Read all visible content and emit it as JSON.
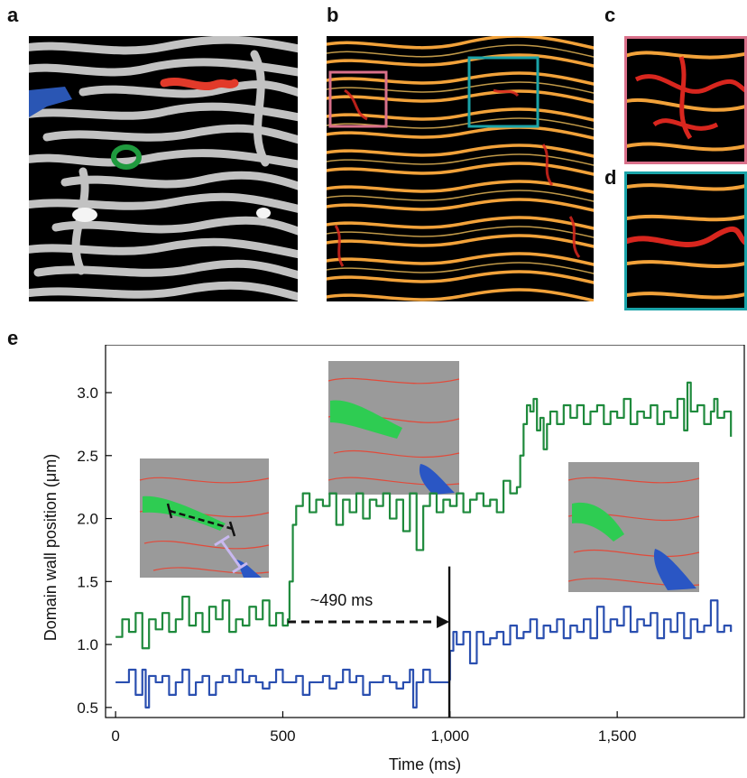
{
  "figure": {
    "panel_labels": {
      "a": "a",
      "b": "b",
      "c": "c",
      "d": "d",
      "e": "e"
    },
    "colors": {
      "green": "#1e8a3c",
      "blue": "#2a4fb0",
      "red": "#e83a2e",
      "pink_box": "#d9708a",
      "teal_box": "#1aa3a8",
      "stripe_gray": "#d8d8d8",
      "stripe_orange": "#f2a23a"
    }
  },
  "chart_data": {
    "type": "line",
    "xlabel": "Time (ms)",
    "ylabel": "Domain wall position (μm)",
    "xlim": [
      -30,
      1880
    ],
    "ylim": [
      0.42,
      3.38
    ],
    "xticks": [
      0,
      500,
      1000,
      1500
    ],
    "xtick_labels": [
      "0",
      "500",
      "1,000",
      "1,500"
    ],
    "yticks": [
      0.5,
      1.0,
      1.5,
      2.0,
      2.5,
      3.0
    ],
    "ytick_labels": [
      "0.5",
      "1.0",
      "1.5",
      "2.0",
      "2.5",
      "3.0"
    ],
    "annotation": {
      "text": "~490 ms",
      "x_start": 515,
      "x_end": 998,
      "y": 1.18
    },
    "vline": {
      "x": 998,
      "y_from": 0.42,
      "y_to": 1.62
    },
    "series": [
      {
        "color": "#1e8a3c",
        "points": [
          [
            0,
            1.06
          ],
          [
            20,
            1.2
          ],
          [
            40,
            1.1
          ],
          [
            60,
            1.25
          ],
          [
            80,
            0.97
          ],
          [
            100,
            1.2
          ],
          [
            120,
            1.12
          ],
          [
            140,
            1.25
          ],
          [
            160,
            1.1
          ],
          [
            180,
            1.2
          ],
          [
            200,
            1.38
          ],
          [
            220,
            1.15
          ],
          [
            240,
            1.25
          ],
          [
            260,
            1.1
          ],
          [
            280,
            1.3
          ],
          [
            300,
            1.2
          ],
          [
            320,
            1.35
          ],
          [
            340,
            1.1
          ],
          [
            360,
            1.2
          ],
          [
            380,
            1.15
          ],
          [
            400,
            1.3
          ],
          [
            420,
            1.2
          ],
          [
            440,
            1.35
          ],
          [
            460,
            1.15
          ],
          [
            480,
            1.25
          ],
          [
            500,
            1.15
          ],
          [
            515,
            1.2
          ],
          [
            520,
            1.5
          ],
          [
            530,
            1.95
          ],
          [
            540,
            2.1
          ],
          [
            560,
            2.2
          ],
          [
            580,
            2.05
          ],
          [
            600,
            2.15
          ],
          [
            620,
            2.1
          ],
          [
            640,
            2.2
          ],
          [
            660,
            1.95
          ],
          [
            680,
            2.15
          ],
          [
            700,
            2.05
          ],
          [
            720,
            2.2
          ],
          [
            740,
            2.0
          ],
          [
            760,
            2.15
          ],
          [
            780,
            2.1
          ],
          [
            800,
            2.2
          ],
          [
            820,
            2.0
          ],
          [
            840,
            2.15
          ],
          [
            860,
            1.9
          ],
          [
            880,
            2.2
          ],
          [
            900,
            1.75
          ],
          [
            920,
            2.1
          ],
          [
            940,
            2.2
          ],
          [
            960,
            2.05
          ],
          [
            980,
            2.15
          ],
          [
            1000,
            2.1
          ],
          [
            1020,
            2.2
          ],
          [
            1040,
            2.05
          ],
          [
            1060,
            2.15
          ],
          [
            1080,
            2.2
          ],
          [
            1100,
            2.1
          ],
          [
            1120,
            2.15
          ],
          [
            1140,
            2.05
          ],
          [
            1160,
            2.3
          ],
          [
            1180,
            2.2
          ],
          [
            1200,
            2.25
          ],
          [
            1210,
            2.5
          ],
          [
            1220,
            2.75
          ],
          [
            1230,
            2.9
          ],
          [
            1240,
            2.85
          ],
          [
            1250,
            2.95
          ],
          [
            1260,
            2.7
          ],
          [
            1270,
            2.8
          ],
          [
            1280,
            2.55
          ],
          [
            1290,
            2.75
          ],
          [
            1300,
            2.85
          ],
          [
            1320,
            2.75
          ],
          [
            1340,
            2.9
          ],
          [
            1360,
            2.8
          ],
          [
            1380,
            2.9
          ],
          [
            1400,
            2.75
          ],
          [
            1420,
            2.85
          ],
          [
            1440,
            2.9
          ],
          [
            1460,
            2.75
          ],
          [
            1480,
            2.85
          ],
          [
            1500,
            2.8
          ],
          [
            1520,
            2.95
          ],
          [
            1540,
            2.75
          ],
          [
            1560,
            2.85
          ],
          [
            1580,
            2.8
          ],
          [
            1600,
            2.9
          ],
          [
            1620,
            2.75
          ],
          [
            1640,
            2.85
          ],
          [
            1660,
            2.8
          ],
          [
            1680,
            2.95
          ],
          [
            1700,
            2.7
          ],
          [
            1710,
            3.08
          ],
          [
            1720,
            2.85
          ],
          [
            1740,
            2.9
          ],
          [
            1760,
            2.75
          ],
          [
            1780,
            2.85
          ],
          [
            1790,
            2.95
          ],
          [
            1800,
            2.8
          ],
          [
            1820,
            2.85
          ],
          [
            1840,
            2.65
          ]
        ]
      },
      {
        "color": "#2a4fb0",
        "points": [
          [
            0,
            0.7
          ],
          [
            20,
            0.7
          ],
          [
            40,
            0.8
          ],
          [
            60,
            0.6
          ],
          [
            80,
            0.8
          ],
          [
            90,
            0.5
          ],
          [
            100,
            0.75
          ],
          [
            120,
            0.7
          ],
          [
            140,
            0.75
          ],
          [
            160,
            0.6
          ],
          [
            180,
            0.7
          ],
          [
            200,
            0.8
          ],
          [
            220,
            0.6
          ],
          [
            240,
            0.7
          ],
          [
            260,
            0.75
          ],
          [
            280,
            0.6
          ],
          [
            300,
            0.7
          ],
          [
            320,
            0.75
          ],
          [
            340,
            0.7
          ],
          [
            360,
            0.8
          ],
          [
            380,
            0.7
          ],
          [
            400,
            0.75
          ],
          [
            420,
            0.7
          ],
          [
            440,
            0.65
          ],
          [
            460,
            0.7
          ],
          [
            480,
            0.8
          ],
          [
            500,
            0.7
          ],
          [
            520,
            0.7
          ],
          [
            540,
            0.75
          ],
          [
            560,
            0.6
          ],
          [
            580,
            0.7
          ],
          [
            600,
            0.7
          ],
          [
            620,
            0.75
          ],
          [
            640,
            0.65
          ],
          [
            660,
            0.7
          ],
          [
            680,
            0.8
          ],
          [
            700,
            0.7
          ],
          [
            720,
            0.75
          ],
          [
            740,
            0.6
          ],
          [
            760,
            0.7
          ],
          [
            780,
            0.7
          ],
          [
            800,
            0.75
          ],
          [
            820,
            0.7
          ],
          [
            840,
            0.65
          ],
          [
            860,
            0.7
          ],
          [
            880,
            0.8
          ],
          [
            890,
            0.5
          ],
          [
            900,
            0.7
          ],
          [
            920,
            0.8
          ],
          [
            940,
            0.7
          ],
          [
            960,
            0.7
          ],
          [
            980,
            0.7
          ],
          [
            998,
            0.72
          ],
          [
            1000,
            0.95
          ],
          [
            1010,
            1.1
          ],
          [
            1020,
            1.0
          ],
          [
            1040,
            1.1
          ],
          [
            1060,
            0.85
          ],
          [
            1080,
            1.1
          ],
          [
            1100,
            1.0
          ],
          [
            1120,
            1.05
          ],
          [
            1140,
            1.1
          ],
          [
            1160,
            1.0
          ],
          [
            1180,
            1.15
          ],
          [
            1200,
            1.05
          ],
          [
            1220,
            1.1
          ],
          [
            1240,
            1.2
          ],
          [
            1260,
            1.05
          ],
          [
            1280,
            1.15
          ],
          [
            1300,
            1.1
          ],
          [
            1320,
            1.2
          ],
          [
            1340,
            1.05
          ],
          [
            1360,
            1.15
          ],
          [
            1380,
            1.1
          ],
          [
            1400,
            1.2
          ],
          [
            1420,
            1.05
          ],
          [
            1440,
            1.3
          ],
          [
            1460,
            1.1
          ],
          [
            1480,
            1.2
          ],
          [
            1500,
            1.15
          ],
          [
            1520,
            1.3
          ],
          [
            1540,
            1.1
          ],
          [
            1560,
            1.2
          ],
          [
            1580,
            1.15
          ],
          [
            1600,
            1.25
          ],
          [
            1620,
            1.05
          ],
          [
            1640,
            1.2
          ],
          [
            1660,
            1.1
          ],
          [
            1680,
            1.25
          ],
          [
            1700,
            1.05
          ],
          [
            1720,
            1.2
          ],
          [
            1740,
            1.1
          ],
          [
            1760,
            1.15
          ],
          [
            1780,
            1.35
          ],
          [
            1800,
            1.1
          ],
          [
            1820,
            1.15
          ],
          [
            1840,
            1.1
          ]
        ]
      }
    ]
  }
}
